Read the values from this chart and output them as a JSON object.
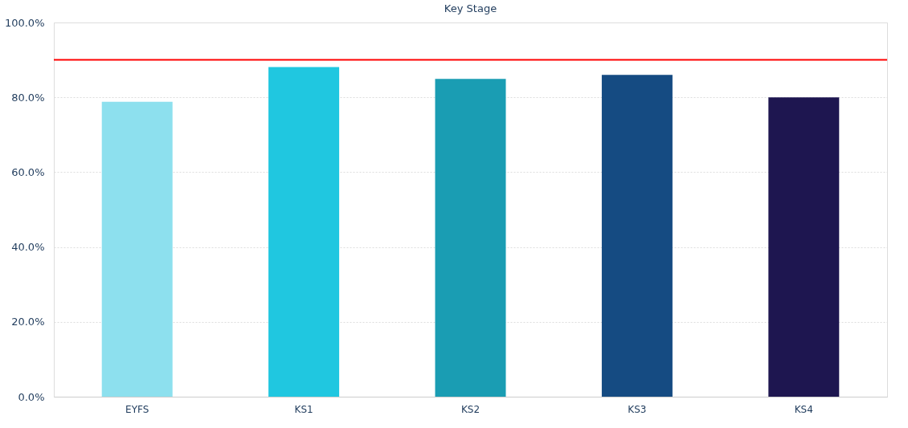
{
  "chart_data": {
    "type": "bar",
    "title": "Key Stage",
    "categories": [
      "EYFS",
      "KS1",
      "KS2",
      "KS3",
      "KS4"
    ],
    "values": [
      78.8,
      88.1,
      84.9,
      86.0,
      80.0
    ],
    "colors": [
      "#8de0ee",
      "#20c7e0",
      "#1a9db3",
      "#154b82",
      "#1e1650"
    ],
    "ylim": [
      0,
      100
    ],
    "yticks": [
      {
        "value": 0,
        "label": "0.0%"
      },
      {
        "value": 20,
        "label": "20.0%"
      },
      {
        "value": 40,
        "label": "40.0%"
      },
      {
        "value": 60,
        "label": "60.0%"
      },
      {
        "value": 80,
        "label": "80.0%"
      },
      {
        "value": 100,
        "label": "100.0%"
      }
    ],
    "ref_lines": [
      {
        "axis": "y",
        "value": 90,
        "label": null,
        "color": "#ff0000"
      }
    ],
    "grid": "y"
  }
}
